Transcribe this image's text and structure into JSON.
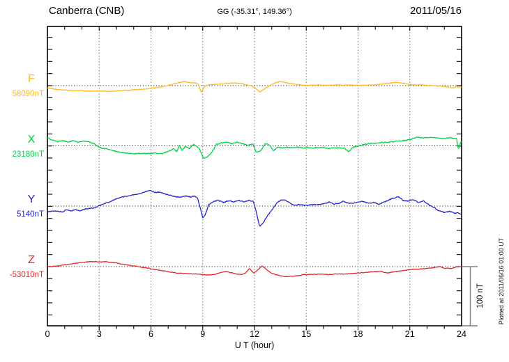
{
  "header": {
    "station": "Canberra (CNB)",
    "coords": "GG (-35.31°, 149.36°)",
    "date": "2011/05/16"
  },
  "footer_note": "Plotted at 2011/06/16 01:00 UT",
  "chart_data": {
    "type": "line",
    "title": "Canberra (CNB) magnetogram for 2011/05/16",
    "xlabel": "U T (hour)",
    "x_range": [
      0,
      24
    ],
    "x_ticks": [
      0,
      3,
      6,
      9,
      12,
      15,
      18,
      21,
      24
    ],
    "x_minor_tick_hours": 1,
    "y_tick_interval_nT": 20,
    "scale_bar": {
      "label": "100 nT",
      "nT": 100
    },
    "grid": "dotted vertical lines every 3 h; dotted horizontal line at each trace baseline",
    "legend_position": "left of each trace",
    "series": [
      {
        "name": "F",
        "baseline_label": "58090nT",
        "baseline_nT": 58090,
        "color": "#FFB81E",
        "offsets_nT": [
          [
            0,
            -4
          ],
          [
            0.5,
            -6
          ],
          [
            1,
            -7.5
          ],
          [
            1.5,
            -8.5
          ],
          [
            2,
            -8.5
          ],
          [
            2.5,
            -9.5
          ],
          [
            3,
            -9
          ],
          [
            3.5,
            -9.5
          ],
          [
            4,
            -9
          ],
          [
            4.5,
            -8
          ],
          [
            5,
            -7
          ],
          [
            5.5,
            -6
          ],
          [
            6,
            -4.5
          ],
          [
            6.5,
            -2.5
          ],
          [
            7,
            0.5
          ],
          [
            7.4,
            3.5
          ],
          [
            7.9,
            6.5
          ],
          [
            8.3,
            5
          ],
          [
            8.6,
            4.5
          ],
          [
            8.75,
            2
          ],
          [
            8.9,
            -11
          ],
          [
            9.1,
            -2
          ],
          [
            9.3,
            1.5
          ],
          [
            9.6,
            2
          ],
          [
            10,
            2.5
          ],
          [
            10.4,
            3.5
          ],
          [
            10.8,
            4.5
          ],
          [
            11.2,
            3.5
          ],
          [
            11.5,
            1.5
          ],
          [
            11.8,
            0
          ],
          [
            12,
            -3
          ],
          [
            12.3,
            -10.5
          ],
          [
            12.6,
            -5
          ],
          [
            12.9,
            0.5
          ],
          [
            13.2,
            5
          ],
          [
            13.5,
            7
          ],
          [
            13.9,
            4.5
          ],
          [
            14.3,
            2.5
          ],
          [
            14.7,
            1
          ],
          [
            15.2,
            0.5
          ],
          [
            15.7,
            1
          ],
          [
            16.2,
            0.5
          ],
          [
            16.7,
            1.2
          ],
          [
            17.2,
            0.8
          ],
          [
            17.7,
            1
          ],
          [
            18.2,
            0.5
          ],
          [
            18.7,
            1
          ],
          [
            19.2,
            2
          ],
          [
            19.6,
            3.5
          ],
          [
            20,
            5
          ],
          [
            20.3,
            5.5
          ],
          [
            20.7,
            3.5
          ],
          [
            21.1,
            1.5
          ],
          [
            21.5,
            1
          ],
          [
            22,
            0.5
          ],
          [
            22.4,
            0
          ],
          [
            22.8,
            -1
          ],
          [
            23.2,
            -2
          ],
          [
            23.5,
            -3.5
          ],
          [
            23.75,
            -1.5
          ],
          [
            24,
            -2.5
          ]
        ]
      },
      {
        "name": "X",
        "baseline_label": "23180nT",
        "baseline_nT": 23180,
        "color": "#00D248",
        "offsets_nT": [
          [
            0,
            13
          ],
          [
            0.3,
            9.5
          ],
          [
            0.6,
            7
          ],
          [
            0.9,
            8.5
          ],
          [
            1.2,
            6
          ],
          [
            1.5,
            8.5
          ],
          [
            1.8,
            6
          ],
          [
            2.1,
            8
          ],
          [
            2.4,
            7
          ],
          [
            2.7,
            3.5
          ],
          [
            3,
            -2.5
          ],
          [
            3.3,
            -4.5
          ],
          [
            3.6,
            -6
          ],
          [
            3.9,
            -8.5
          ],
          [
            4.2,
            -10.5
          ],
          [
            4.6,
            -12
          ],
          [
            5,
            -13
          ],
          [
            5.4,
            -12
          ],
          [
            5.8,
            -13
          ],
          [
            6.2,
            -12
          ],
          [
            6.6,
            -13
          ],
          [
            7,
            -9.5
          ],
          [
            7.3,
            -5
          ],
          [
            7.5,
            -9.5
          ],
          [
            7.65,
            1
          ],
          [
            7.8,
            -7
          ],
          [
            8,
            -1
          ],
          [
            8.2,
            -5
          ],
          [
            8.45,
            2.5
          ],
          [
            8.6,
            0
          ],
          [
            8.8,
            -4.5
          ],
          [
            9.05,
            -21
          ],
          [
            9.3,
            -18
          ],
          [
            9.55,
            -9.5
          ],
          [
            9.8,
            2.5
          ],
          [
            10.1,
            5
          ],
          [
            10.4,
            6
          ],
          [
            10.7,
            3.5
          ],
          [
            11,
            6
          ],
          [
            11.3,
            3.5
          ],
          [
            11.6,
            1
          ],
          [
            11.9,
            3.5
          ],
          [
            12.1,
            -10.5
          ],
          [
            12.35,
            -9
          ],
          [
            12.6,
            3.5
          ],
          [
            12.85,
            2
          ],
          [
            13.1,
            -8
          ],
          [
            13.35,
            -2.5
          ],
          [
            13.6,
            -3.5
          ],
          [
            13.9,
            -2.5
          ],
          [
            14.2,
            -3
          ],
          [
            14.5,
            -2
          ],
          [
            14.8,
            -3.5
          ],
          [
            15.1,
            -2.5
          ],
          [
            15.4,
            -4
          ],
          [
            15.7,
            -2.5
          ],
          [
            16,
            -2.5
          ],
          [
            16.3,
            -4.5
          ],
          [
            16.6,
            -3
          ],
          [
            16.9,
            -3.5
          ],
          [
            17.2,
            -4
          ],
          [
            17.45,
            -9.5
          ],
          [
            17.7,
            -2.5
          ],
          [
            18,
            -0.5
          ],
          [
            18.3,
            2
          ],
          [
            18.6,
            3.5
          ],
          [
            19,
            4.5
          ],
          [
            19.4,
            5.5
          ],
          [
            19.8,
            6.5
          ],
          [
            20.2,
            7.5
          ],
          [
            20.6,
            8.5
          ],
          [
            21,
            10.5
          ],
          [
            21.4,
            14
          ],
          [
            21.8,
            13
          ],
          [
            22.2,
            14
          ],
          [
            22.6,
            13
          ],
          [
            23,
            11.5
          ],
          [
            23.3,
            14
          ],
          [
            23.55,
            12
          ],
          [
            23.7,
            13
          ],
          [
            23.82,
            -7
          ],
          [
            23.95,
            7
          ],
          [
            24,
            6
          ]
        ]
      },
      {
        "name": "Y",
        "baseline_label": "5140nT",
        "baseline_nT": 5140,
        "color": "#2323CF",
        "offsets_nT": [
          [
            0,
            -9.5
          ],
          [
            0.3,
            -8
          ],
          [
            0.6,
            -8.5
          ],
          [
            0.9,
            -9.5
          ],
          [
            1.1,
            -6
          ],
          [
            1.3,
            -8
          ],
          [
            1.6,
            -6.5
          ],
          [
            1.9,
            -7.5
          ],
          [
            2.2,
            -5
          ],
          [
            2.5,
            -3.5
          ],
          [
            2.8,
            -2.5
          ],
          [
            3.1,
            2
          ],
          [
            3.35,
            4.5
          ],
          [
            3.6,
            7
          ],
          [
            3.9,
            11
          ],
          [
            4.2,
            14
          ],
          [
            4.5,
            16
          ],
          [
            4.8,
            17.5
          ],
          [
            5.1,
            19
          ],
          [
            5.4,
            21
          ],
          [
            5.7,
            24
          ],
          [
            5.95,
            26
          ],
          [
            6.2,
            22.5
          ],
          [
            6.5,
            23.5
          ],
          [
            6.8,
            20
          ],
          [
            7.1,
            18
          ],
          [
            7.4,
            15.5
          ],
          [
            7.7,
            14.5
          ],
          [
            8,
            16.5
          ],
          [
            8.3,
            15
          ],
          [
            8.55,
            17
          ],
          [
            8.7,
            13
          ],
          [
            8.85,
            -2
          ],
          [
            9,
            -20
          ],
          [
            9.15,
            -14
          ],
          [
            9.35,
            2.5
          ],
          [
            9.6,
            7
          ],
          [
            9.9,
            9.5
          ],
          [
            10.2,
            6
          ],
          [
            10.5,
            9
          ],
          [
            10.8,
            7
          ],
          [
            11.1,
            9.5
          ],
          [
            11.4,
            7
          ],
          [
            11.7,
            9.5
          ],
          [
            11.95,
            7
          ],
          [
            12.1,
            -10
          ],
          [
            12.3,
            -34
          ],
          [
            12.5,
            -28
          ],
          [
            12.75,
            -16
          ],
          [
            13,
            -7
          ],
          [
            13.25,
            3.5
          ],
          [
            13.5,
            9.5
          ],
          [
            13.75,
            10.5
          ],
          [
            14,
            6
          ],
          [
            14.3,
            1
          ],
          [
            14.6,
            2.5
          ],
          [
            14.9,
            1
          ],
          [
            15.2,
            2
          ],
          [
            15.5,
            2.5
          ],
          [
            15.8,
            3
          ],
          [
            16.1,
            4
          ],
          [
            16.35,
            7
          ],
          [
            16.6,
            3.5
          ],
          [
            16.9,
            4.5
          ],
          [
            17.15,
            8
          ],
          [
            17.4,
            5
          ],
          [
            17.7,
            4.5
          ],
          [
            18,
            6
          ],
          [
            18.3,
            8
          ],
          [
            18.6,
            4.5
          ],
          [
            18.9,
            6
          ],
          [
            19.2,
            3.5
          ],
          [
            19.5,
            6.5
          ],
          [
            19.8,
            10.5
          ],
          [
            20.1,
            13.5
          ],
          [
            20.35,
            15.5
          ],
          [
            20.6,
            9.5
          ],
          [
            20.9,
            8
          ],
          [
            21.2,
            10.5
          ],
          [
            21.5,
            6
          ],
          [
            21.8,
            8.5
          ],
          [
            22.1,
            2.5
          ],
          [
            22.4,
            -2.5
          ],
          [
            22.7,
            -8
          ],
          [
            23,
            -10.5
          ],
          [
            23.3,
            -8.5
          ],
          [
            23.6,
            -12
          ],
          [
            23.8,
            -11
          ],
          [
            24,
            -14
          ]
        ]
      },
      {
        "name": "Z",
        "baseline_label": "-53010nT",
        "baseline_nT": -53010,
        "color": "#E62626",
        "offsets_nT": [
          [
            0,
            0
          ],
          [
            0.4,
            0.5
          ],
          [
            0.8,
            2
          ],
          [
            1.2,
            4
          ],
          [
            1.6,
            5.5
          ],
          [
            2,
            7
          ],
          [
            2.4,
            8
          ],
          [
            2.8,
            8.5
          ],
          [
            3.1,
            7.5
          ],
          [
            3.4,
            8.5
          ],
          [
            3.7,
            7
          ],
          [
            4,
            6
          ],
          [
            4.4,
            4
          ],
          [
            4.8,
            2
          ],
          [
            5.2,
            0.5
          ],
          [
            5.6,
            -1.5
          ],
          [
            6,
            -3.5
          ],
          [
            6.5,
            -6
          ],
          [
            7,
            -8.5
          ],
          [
            7.5,
            -10.5
          ],
          [
            8,
            -11.5
          ],
          [
            8.5,
            -12
          ],
          [
            9,
            -13
          ],
          [
            9.3,
            -14
          ],
          [
            9.7,
            -13
          ],
          [
            10.05,
            -9.5
          ],
          [
            10.35,
            -7.5
          ],
          [
            10.7,
            -10.5
          ],
          [
            11,
            -12.5
          ],
          [
            11.3,
            -13
          ],
          [
            11.5,
            -10.5
          ],
          [
            11.7,
            -2.5
          ],
          [
            11.95,
            -11
          ],
          [
            12.2,
            -5
          ],
          [
            12.45,
            1
          ],
          [
            12.7,
            -5
          ],
          [
            12.95,
            -10.5
          ],
          [
            13.3,
            -14
          ],
          [
            13.8,
            -16.5
          ],
          [
            14.3,
            -15.5
          ],
          [
            14.8,
            -13.5
          ],
          [
            15.3,
            -13
          ],
          [
            15.8,
            -12.5
          ],
          [
            16.3,
            -13
          ],
          [
            16.8,
            -12
          ],
          [
            17.3,
            -12.5
          ],
          [
            17.8,
            -11
          ],
          [
            18.3,
            -10
          ],
          [
            18.8,
            -8.5
          ],
          [
            19.3,
            -8
          ],
          [
            19.7,
            -10.5
          ],
          [
            20.1,
            -8.5
          ],
          [
            20.5,
            -7
          ],
          [
            21,
            -5
          ],
          [
            21.5,
            -4
          ],
          [
            22,
            -3
          ],
          [
            22.4,
            -1.5
          ],
          [
            22.7,
            0
          ],
          [
            23,
            -2.5
          ],
          [
            23.4,
            -3
          ],
          [
            23.7,
            -0.5
          ],
          [
            24,
            -0.5
          ]
        ]
      }
    ]
  }
}
